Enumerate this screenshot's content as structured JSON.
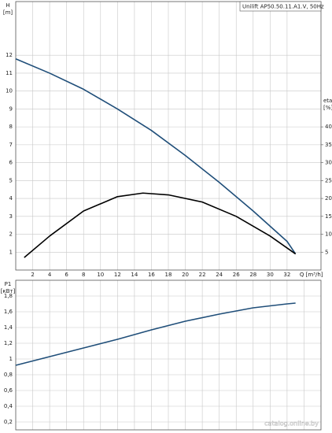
{
  "chart_data": [
    {
      "type": "line",
      "legend_text": "Unilift AP50.50.11.A1.V, 50Hz",
      "ylabel": "H",
      "yunit": "[m]",
      "y2label": "eta",
      "y2unit": "[%]",
      "xlabel": "Q [m³/h]",
      "xlim": [
        0,
        36
      ],
      "xticks": [
        2,
        4,
        6,
        8,
        10,
        12,
        14,
        16,
        18,
        20,
        22,
        24,
        26,
        28,
        30,
        32
      ],
      "ylim": [
        0,
        15
      ],
      "yticks": [
        1,
        2,
        3,
        4,
        5,
        6,
        7,
        8,
        9,
        10,
        11,
        12
      ],
      "y2lim": [
        0,
        75
      ],
      "y2ticks": [
        5,
        10,
        15,
        20,
        25,
        30,
        35,
        40
      ],
      "grid": true,
      "show_xtick_labels": true,
      "series": [
        {
          "name": "H",
          "color": "#1f4e79",
          "x": [
            0,
            4,
            8,
            12,
            16,
            20,
            24,
            28,
            32,
            33
          ],
          "values": [
            11.8,
            11.0,
            10.1,
            9.0,
            7.8,
            6.4,
            4.9,
            3.3,
            1.6,
            0.9
          ]
        },
        {
          "name": "eta",
          "color": "#000000",
          "axis": "y2",
          "x": [
            1,
            4,
            8,
            12,
            15,
            18,
            22,
            26,
            30,
            33
          ],
          "values": [
            3.5,
            9.5,
            16.5,
            20.5,
            21.5,
            21,
            19,
            15,
            9.5,
            4.5
          ]
        }
      ]
    },
    {
      "type": "line",
      "ylabel": "P1",
      "yunit": "[кВт]",
      "watermark": "catalog.online.by",
      "xlim": [
        0,
        36
      ],
      "xticks": [
        2,
        4,
        6,
        8,
        10,
        12,
        14,
        16,
        18,
        20,
        22,
        24,
        26,
        28,
        30,
        32,
        34
      ],
      "ylim": [
        0.1,
        2.0
      ],
      "yticks": [
        {
          "value": 0.2,
          "label": "0,2"
        },
        {
          "value": 0.4,
          "label": "0,4"
        },
        {
          "value": 0.6,
          "label": "0,6"
        },
        {
          "value": 0.8,
          "label": "0,8"
        },
        1,
        {
          "value": 1.2,
          "label": "1,2"
        },
        {
          "value": 1.4,
          "label": "1,4"
        },
        {
          "value": 1.6,
          "label": "1,6"
        },
        {
          "value": 1.8,
          "label": "1,8"
        }
      ],
      "grid": true,
      "show_xtick_labels": false,
      "series": [
        {
          "name": "P1",
          "color": "#1f4e79",
          "x": [
            0,
            4,
            8,
            12,
            16,
            20,
            24,
            28,
            32,
            33
          ],
          "values": [
            0.92,
            1.03,
            1.14,
            1.25,
            1.37,
            1.48,
            1.57,
            1.65,
            1.7,
            1.71
          ]
        }
      ]
    }
  ]
}
